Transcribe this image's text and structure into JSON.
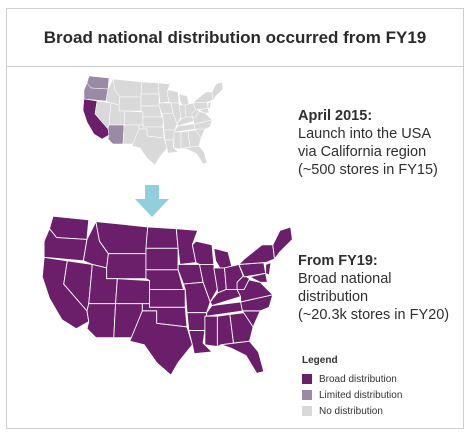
{
  "title": "Broad national distribution occurred from FY19",
  "colors": {
    "broad": "#6b1f6b",
    "limited": "#9a8aa6",
    "none": "#d9d9d9",
    "arrow": "#8fd0dc",
    "state_border": "#ffffff"
  },
  "annotations": {
    "april_2015": {
      "heading": "April 2015:",
      "lines": [
        "Launch into the USA",
        "via California region",
        "(~500 stores in FY15)"
      ]
    },
    "fy19": {
      "heading": "From FY19:",
      "lines": [
        "Broad national",
        "distribution",
        "(~20.3k stores in FY20)"
      ]
    }
  },
  "maps": {
    "before": {
      "label": "April 2015",
      "highlighted_states": [
        "Washington",
        "Oregon",
        "California",
        "Arizona"
      ],
      "broad_states": [
        "California"
      ],
      "limited_states": [
        "Washington",
        "Oregon",
        "Arizona"
      ]
    },
    "after": {
      "label": "From FY19",
      "coverage": "all lower 48 states broad distribution"
    }
  },
  "legend": {
    "title": "Legend",
    "items": [
      {
        "label": "Broad distribution",
        "color_key": "broad"
      },
      {
        "label": "Limited distribution",
        "color_key": "limited"
      },
      {
        "label": "No distribution",
        "color_key": "none"
      }
    ]
  }
}
